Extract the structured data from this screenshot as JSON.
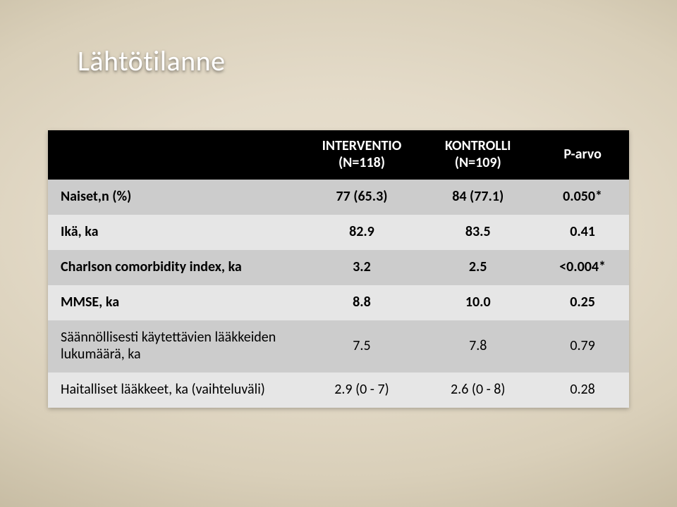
{
  "slide": {
    "title": "Lähtötilanne",
    "bg_gradient_center": "#e9e1d0",
    "bg_gradient_edge": "#a99e83"
  },
  "table": {
    "header": {
      "col0": "",
      "col1_line1": "INTERVENTIO",
      "col1_line2": "(N=118)",
      "col2_line1": "KONTROLLI",
      "col2_line2": "(N=109)",
      "col3": "P-arvo"
    },
    "rows": [
      {
        "label": "Naiset,n (%)",
        "interv": "77 (65.3)",
        "kontr": "84 (77.1)",
        "p": "0.050*",
        "bold": true
      },
      {
        "label": "Ikä, ka",
        "interv": "82.9",
        "kontr": "83.5",
        "p": "0.41",
        "bold": true
      },
      {
        "label": "Charlson comorbidity index, ka",
        "interv": "3.2",
        "kontr": "2.5",
        "p": "<0.004*",
        "bold": true
      },
      {
        "label": "MMSE, ka",
        "interv": "8.8",
        "kontr": "10.0",
        "p": "0.25",
        "bold": true
      },
      {
        "label": "Säännöllisesti käytettävien lääkkeiden lukumäärä, ka",
        "interv": "7.5",
        "kontr": "7.8",
        "p": "0.79",
        "bold": false
      },
      {
        "label": "Haitalliset lääkkeet, ka (vaihteluväli)",
        "interv": "2.9 (0 - 7)",
        "kontr": "2.6 (0 - 8)",
        "p": "0.28",
        "bold": false
      }
    ],
    "style": {
      "header_bg": "#000000",
      "header_fg": "#ffffff",
      "row_odd_bg": "#cccccc",
      "row_even_bg": "#e6e6e6",
      "font_size_pt": 20,
      "header_font_size_pt": 20,
      "col_widths_pct": [
        44,
        20,
        20,
        16
      ]
    }
  }
}
